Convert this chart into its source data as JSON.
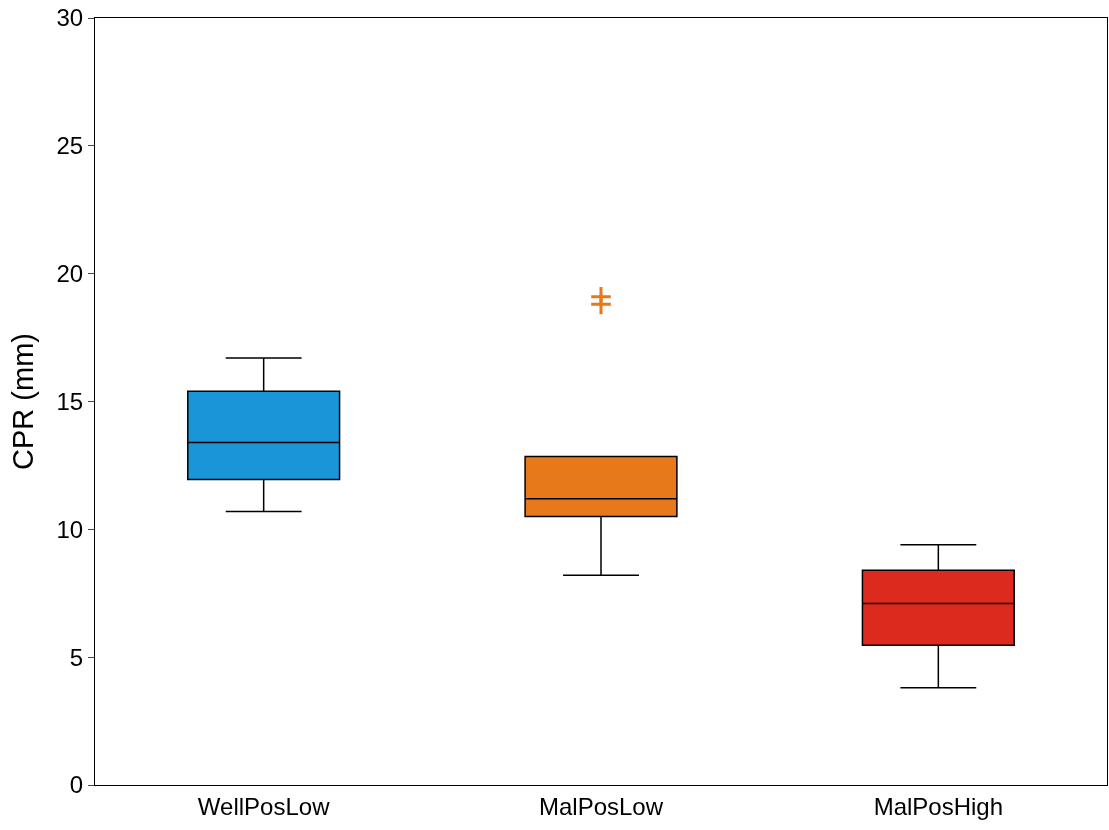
{
  "chart_data": {
    "type": "box",
    "ylabel": "CPR (mm)",
    "categories": [
      "WellPosLow",
      "MalPosLow",
      "MalPosHigh"
    ],
    "colors": [
      "#1a96d8",
      "#e8791a",
      "#dc2a1e"
    ],
    "boxes": [
      {
        "low": 10.7,
        "q1": 11.95,
        "median": 13.4,
        "q3": 15.4,
        "high": 16.7
      },
      {
        "low": 8.2,
        "q1": 10.5,
        "median": 11.2,
        "q3": 12.85,
        "high": 12.85,
        "outliers": [
          19.1,
          18.8
        ]
      },
      {
        "low": 3.8,
        "q1": 5.47,
        "median": 7.1,
        "q3": 8.4,
        "high": 9.4
      }
    ],
    "marker": "cross",
    "ylim": [
      0,
      30
    ],
    "yticks": [
      0,
      5,
      10,
      15,
      20,
      25,
      30
    ],
    "grid": false
  }
}
